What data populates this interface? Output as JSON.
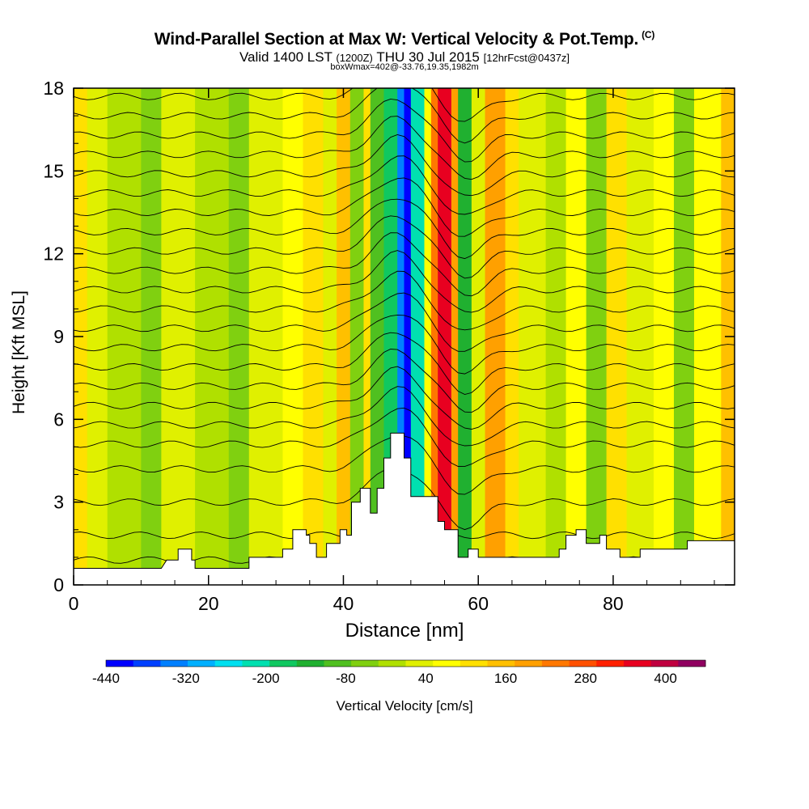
{
  "title": {
    "main": "Wind-Parallel Section at Max W: Vertical Velocity & Pot.Temp.",
    "copyright_mark": "(C)",
    "valid_prefix": "Valid 1400 LST",
    "valid_utc": "(1200Z)",
    "valid_date": "THU 30 Jul 2015",
    "forecast_info": "[12hrFcst@0437z]",
    "box_info": "boxWmax=402@-33.76,19.35,1982m"
  },
  "chart_data": {
    "type": "heatmap",
    "xlabel": "Distance [nm]",
    "ylabel": "Height [Kft MSL]",
    "xlim": [
      0,
      98
    ],
    "ylim": [
      0,
      18
    ],
    "x_ticks": [
      0,
      20,
      40,
      60,
      80
    ],
    "y_ticks": [
      0,
      3,
      6,
      9,
      12,
      15,
      18
    ],
    "colorbar": {
      "label": "Vertical Velocity [cm/s]",
      "tick_labels": [
        "-440",
        "-320",
        "-200",
        "-80",
        "40",
        "160",
        "280",
        "400"
      ],
      "min": -440,
      "max": 460,
      "step": 40,
      "colors": [
        "#0000ff",
        "#0040ff",
        "#0080ff",
        "#00b0ff",
        "#00e0f0",
        "#00e0b0",
        "#10c860",
        "#20b030",
        "#50c020",
        "#80d010",
        "#b0e000",
        "#e0f000",
        "#ffff00",
        "#ffe000",
        "#ffc000",
        "#ffa000",
        "#ff7800",
        "#ff5000",
        "#ff2000",
        "#e80020",
        "#c00040",
        "#900060"
      ]
    },
    "vertical_velocity_bands": [
      {
        "x": 0,
        "w": 2,
        "w_cms": 80
      },
      {
        "x": 2,
        "w": 3,
        "w_cms": 0
      },
      {
        "x": 5,
        "w": 5,
        "w_cms": -40
      },
      {
        "x": 10,
        "w": 3,
        "w_cms": -80
      },
      {
        "x": 13,
        "w": 5,
        "w_cms": 0
      },
      {
        "x": 18,
        "w": 5,
        "w_cms": -40
      },
      {
        "x": 23,
        "w": 3,
        "w_cms": -80
      },
      {
        "x": 26,
        "w": 5,
        "w_cms": 0
      },
      {
        "x": 31,
        "w": 3,
        "w_cms": 40
      },
      {
        "x": 34,
        "w": 3,
        "w_cms": 80
      },
      {
        "x": 37,
        "w": 2,
        "w_cms": 0
      },
      {
        "x": 39,
        "w": 2,
        "w_cms": 120
      },
      {
        "x": 41,
        "w": 2,
        "w_cms": -80
      },
      {
        "x": 43,
        "w": 1,
        "w_cms": 80
      },
      {
        "x": 44,
        "w": 2,
        "w_cms": -120
      },
      {
        "x": 46,
        "w": 2,
        "w_cms": -200
      },
      {
        "x": 48,
        "w": 1,
        "w_cms": -360
      },
      {
        "x": 49,
        "w": 1,
        "w_cms": -440
      },
      {
        "x": 50,
        "w": 2,
        "w_cms": -240
      },
      {
        "x": 52,
        "w": 1,
        "w_cms": 40
      },
      {
        "x": 53,
        "w": 1,
        "w_cms": 200
      },
      {
        "x": 54,
        "w": 2,
        "w_cms": 320
      },
      {
        "x": 56,
        "w": 1,
        "w_cms": 160
      },
      {
        "x": 57,
        "w": 2,
        "w_cms": -160
      },
      {
        "x": 59,
        "w": 2,
        "w_cms": 0
      },
      {
        "x": 61,
        "w": 3,
        "w_cms": 160
      },
      {
        "x": 64,
        "w": 2,
        "w_cms": 80
      },
      {
        "x": 66,
        "w": 4,
        "w_cms": 0
      },
      {
        "x": 70,
        "w": 3,
        "w_cms": -40
      },
      {
        "x": 73,
        "w": 3,
        "w_cms": 40
      },
      {
        "x": 76,
        "w": 3,
        "w_cms": -80
      },
      {
        "x": 79,
        "w": 3,
        "w_cms": 80
      },
      {
        "x": 82,
        "w": 4,
        "w_cms": 0
      },
      {
        "x": 86,
        "w": 3,
        "w_cms": 40
      },
      {
        "x": 89,
        "w": 3,
        "w_cms": -80
      },
      {
        "x": 92,
        "w": 4,
        "w_cms": 40
      },
      {
        "x": 96,
        "w": 2,
        "w_cms": 120
      }
    ],
    "terrain": [
      [
        0,
        0.6
      ],
      [
        13,
        0.6
      ],
      [
        13.8,
        0.9
      ],
      [
        15.5,
        0.9
      ],
      [
        15.5,
        1.3
      ],
      [
        17.5,
        1.3
      ],
      [
        17.5,
        0.9
      ],
      [
        18,
        0.9
      ],
      [
        18,
        0.6
      ],
      [
        26,
        0.6
      ],
      [
        26,
        1.0
      ],
      [
        31,
        1.0
      ],
      [
        31,
        1.3
      ],
      [
        32.5,
        1.3
      ],
      [
        32.5,
        2.0
      ],
      [
        34.5,
        2.0
      ],
      [
        34.5,
        1.8
      ],
      [
        35,
        1.8
      ],
      [
        35,
        1.5
      ],
      [
        36,
        1.5
      ],
      [
        36,
        1.0
      ],
      [
        37.5,
        1.0
      ],
      [
        37.5,
        1.5
      ],
      [
        39.5,
        1.5
      ],
      [
        39.5,
        2.0
      ],
      [
        40.5,
        2.0
      ],
      [
        40.5,
        1.8
      ],
      [
        41.2,
        1.8
      ],
      [
        41.2,
        3.0
      ],
      [
        42.5,
        3.0
      ],
      [
        42.5,
        3.5
      ],
      [
        44,
        3.5
      ],
      [
        44,
        2.6
      ],
      [
        45,
        2.6
      ],
      [
        45,
        3.5
      ],
      [
        46,
        3.5
      ],
      [
        46,
        4.6
      ],
      [
        47,
        4.6
      ],
      [
        47,
        5.5
      ],
      [
        49,
        5.5
      ],
      [
        49,
        4.6
      ],
      [
        50,
        4.6
      ],
      [
        50,
        3.2
      ],
      [
        54,
        3.2
      ],
      [
        54,
        2.3
      ],
      [
        55,
        2.3
      ],
      [
        55,
        2.0
      ],
      [
        57,
        2.0
      ],
      [
        57,
        1.0
      ],
      [
        58.5,
        1.0
      ],
      [
        58.5,
        1.3
      ],
      [
        60,
        1.3
      ],
      [
        60,
        1.0
      ],
      [
        72,
        1.0
      ],
      [
        72,
        1.3
      ],
      [
        73,
        1.3
      ],
      [
        73,
        1.8
      ],
      [
        74.5,
        1.8
      ],
      [
        74.5,
        2.0
      ],
      [
        76,
        2.0
      ],
      [
        76,
        1.5
      ],
      [
        78,
        1.5
      ],
      [
        78,
        1.8
      ],
      [
        79,
        1.8
      ],
      [
        79,
        1.3
      ],
      [
        81,
        1.3
      ],
      [
        81,
        1.0
      ],
      [
        84,
        1.0
      ],
      [
        84,
        1.3
      ],
      [
        91,
        1.3
      ],
      [
        91,
        1.6
      ],
      [
        98,
        1.6
      ]
    ],
    "theta_contours_base_heights": [
      0.9,
      1.8,
      3.0,
      4.2,
      5.1,
      5.8,
      6.5,
      7.2,
      7.9,
      8.6,
      9.3,
      10.0,
      10.7,
      11.4,
      12.1,
      12.8,
      13.5,
      14.2,
      14.9,
      15.6,
      16.3,
      17.0,
      17.7
    ]
  }
}
